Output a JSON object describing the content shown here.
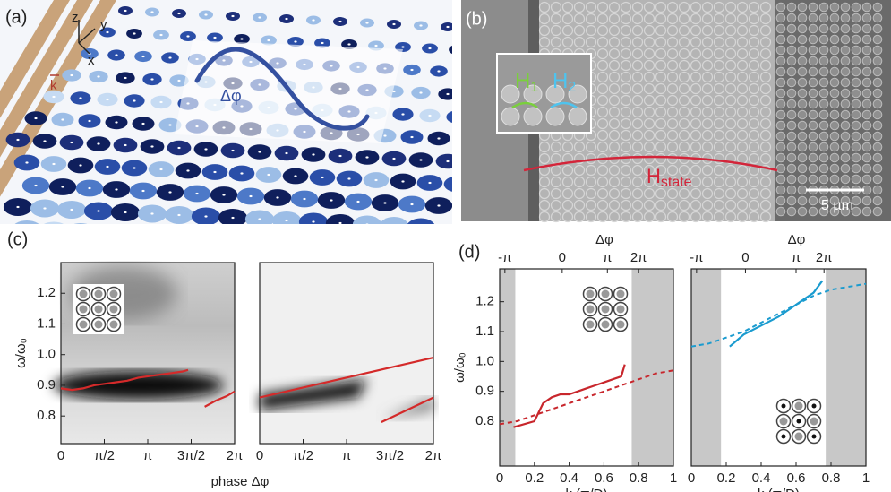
{
  "panels": {
    "a": {
      "label": "(a)",
      "axes": [
        "z",
        "y",
        "x"
      ],
      "k": "k",
      "phase": "Δφ"
    },
    "b": {
      "label": "(b)",
      "h1": "H",
      "h1_sub": "1",
      "h2": "H",
      "h2_sub": "2",
      "hs": "H",
      "hs_sub": "state",
      "scale": "5 µm"
    },
    "c": {
      "label": "(c)",
      "xlabel": "phase Δφ"
    },
    "d": {
      "label": "(d)"
    }
  },
  "chart_data": [
    {
      "type": "line",
      "ylabel": "ω/ω₀",
      "xlim": [
        0,
        6.2832
      ],
      "ylim": [
        0.71,
        1.3
      ],
      "xticks": [
        0,
        {
          "value": 1.5708,
          "label": "π/2"
        },
        {
          "value": 3.1416,
          "label": "π"
        },
        {
          "value": 4.7124,
          "label": "3π/2"
        },
        {
          "value": 6.2832,
          "label": "2π"
        }
      ],
      "yticks": [
        0.8,
        0.9,
        {
          "value": 1,
          "label": "1.0"
        },
        1.1,
        1.2
      ],
      "series": [
        {
          "color": "#d42a2a",
          "x": [
            0,
            0.4,
            0.8,
            1.2,
            1.6,
            2.0,
            2.4,
            2.8,
            3.2,
            3.6,
            4.0,
            4.4,
            4.6,
            4.9,
            5.2,
            5.6,
            6.0,
            6.28
          ],
          "values": [
            0.89,
            0.885,
            0.89,
            0.9,
            0.905,
            0.91,
            0.915,
            0.925,
            0.93,
            0.935,
            0.94,
            0.945,
            0.95,
            null,
            0.83,
            0.85,
            0.865,
            0.88
          ]
        }
      ]
    },
    {
      "type": "line",
      "xlim": [
        0,
        6.2832
      ],
      "ylim": [
        0.71,
        1.3
      ],
      "xticks": [
        0,
        {
          "value": 1.5708,
          "label": "π/2"
        },
        {
          "value": 3.1416,
          "label": "π"
        },
        {
          "value": 4.7124,
          "label": "3π/2"
        },
        {
          "value": 6.2832,
          "label": "2π"
        }
      ],
      "series": [
        {
          "color": "#d42a2a",
          "x": [
            0,
            6.28
          ],
          "values": [
            0.86,
            0.99
          ]
        },
        {
          "color": "#d42a2a",
          "x": [
            4.4,
            6.28
          ],
          "values": [
            0.78,
            0.86
          ]
        }
      ]
    },
    {
      "type": "line",
      "ylabel": "ω/ω₀",
      "xlabel": "k (π/D)",
      "xlim": [
        0,
        1
      ],
      "ylim": [
        0.65,
        1.31
      ],
      "xticks": [
        0,
        0.2,
        0.4,
        0.6,
        0.8,
        1
      ],
      "yticks": [
        0.8,
        0.9,
        {
          "value": 1,
          "label": "1.0"
        },
        1.1,
        1.2
      ],
      "top_axis": {
        "label": "Δφ",
        "ticks": [
          "-π",
          "0",
          "π",
          "2π"
        ]
      },
      "shaded": [
        [
          0,
          0.09
        ],
        [
          0.76,
          1
        ]
      ],
      "series": [
        {
          "color": "#c8262c",
          "x": [
            0.08,
            0.2,
            0.25,
            0.3,
            0.35,
            0.4,
            0.45,
            0.5,
            0.55,
            0.6,
            0.65,
            0.7,
            0.72
          ],
          "values": [
            0.78,
            0.8,
            0.86,
            0.88,
            0.89,
            0.89,
            0.9,
            0.91,
            0.92,
            0.93,
            0.94,
            0.95,
            0.99
          ]
        },
        {
          "color": "#c8262c",
          "dash": true,
          "x": [
            0,
            0.1,
            0.2,
            0.3,
            0.4,
            0.5,
            0.6,
            0.7,
            0.8,
            0.9,
            1
          ],
          "values": [
            0.79,
            0.8,
            0.82,
            0.84,
            0.86,
            0.88,
            0.9,
            0.92,
            0.94,
            0.96,
            0.97
          ]
        }
      ]
    },
    {
      "type": "line",
      "xlabel": "k (π/D)",
      "xlim": [
        0,
        1
      ],
      "ylim": [
        0.65,
        1.31
      ],
      "xticks": [
        0,
        0.2,
        0.4,
        0.6,
        0.8,
        1
      ],
      "top_axis": {
        "label": "Δφ",
        "ticks": [
          "-π",
          "0",
          "π",
          "2π"
        ]
      },
      "shaded": [
        [
          0,
          0.17
        ],
        [
          0.77,
          1
        ]
      ],
      "series": [
        {
          "color": "#1a9bcf",
          "x": [
            0.22,
            0.3,
            0.4,
            0.5,
            0.6,
            0.7,
            0.75
          ],
          "values": [
            1.05,
            1.09,
            1.12,
            1.15,
            1.19,
            1.23,
            1.27
          ]
        },
        {
          "color": "#1a9bcf",
          "dash": true,
          "x": [
            0,
            0.1,
            0.2,
            0.3,
            0.4,
            0.5,
            0.6,
            0.7,
            0.8,
            0.9,
            1
          ],
          "values": [
            1.05,
            1.06,
            1.08,
            1.1,
            1.13,
            1.16,
            1.19,
            1.22,
            1.24,
            1.25,
            1.26
          ]
        }
      ]
    }
  ]
}
